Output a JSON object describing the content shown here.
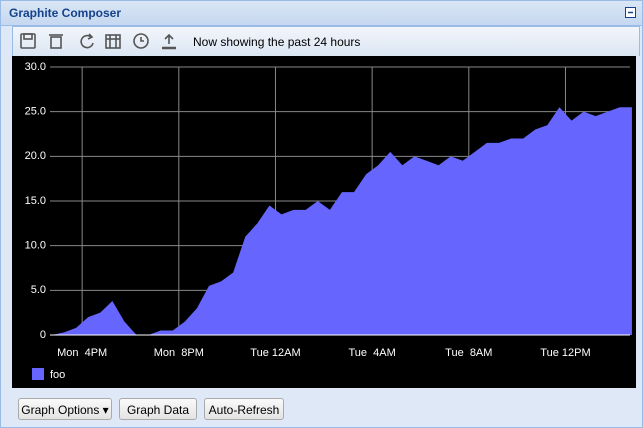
{
  "header": {
    "title": "Graphite Composer"
  },
  "toolbar": {
    "status": "Now showing the past 24 hours"
  },
  "chart_data": {
    "type": "area",
    "x": [
      14.75,
      15.25,
      15.75,
      16.25,
      16.75,
      17.25,
      17.75,
      18.25,
      18.75,
      19.25,
      19.75,
      20.25,
      20.75,
      21.25,
      21.75,
      22.25,
      22.75,
      23.25,
      23.75,
      24.25,
      24.75,
      25.25,
      25.75,
      26.25,
      26.75,
      27.25,
      27.75,
      28.25,
      28.75,
      29.25,
      29.75,
      30.25,
      30.75,
      31.25,
      31.75,
      32.25,
      32.75,
      33.25,
      33.75,
      34.25,
      34.75,
      35.25,
      35.75,
      36.25,
      36.75,
      37.25,
      37.75,
      38.25,
      38.75
    ],
    "series": [
      {
        "name": "foo",
        "color": "#6666ff",
        "values": [
          0,
          0.3,
          0.8,
          2,
          2.5,
          3.8,
          1.5,
          0,
          0,
          0.5,
          0.5,
          1.5,
          3,
          5.5,
          6,
          7,
          11,
          12.5,
          14.5,
          13.5,
          14,
          14,
          15,
          14,
          16,
          16,
          18,
          19,
          20.5,
          19,
          20,
          19.5,
          19,
          20,
          19.5,
          20.5,
          21.5,
          21.5,
          22,
          22,
          23,
          23.5,
          25.5,
          24,
          25,
          24.5,
          25,
          25.5,
          25.5
        ]
      }
    ],
    "xlim": [
      14.67,
      38.67
    ],
    "xticks": [
      {
        "value": 16,
        "label": "Mon  4PM"
      },
      {
        "value": 20,
        "label": "Mon  8PM"
      },
      {
        "value": 24,
        "label": "Tue 12AM"
      },
      {
        "value": 28,
        "label": "Tue  4AM"
      },
      {
        "value": 32,
        "label": "Tue  8AM"
      },
      {
        "value": 36,
        "label": "Tue 12PM"
      }
    ],
    "ylim": [
      0,
      30
    ],
    "yticks": [
      0,
      {
        "value": 5,
        "label": "5.0"
      },
      {
        "value": 10,
        "label": "10.0"
      },
      {
        "value": 15,
        "label": "15.0"
      },
      {
        "value": 20,
        "label": "20.0"
      },
      {
        "value": 25,
        "label": "25.0"
      },
      {
        "value": 30,
        "label": "30.0"
      }
    ],
    "grid": true
  },
  "buttons": [
    "Graph Options",
    "Graph Data",
    "Auto-Refresh"
  ]
}
